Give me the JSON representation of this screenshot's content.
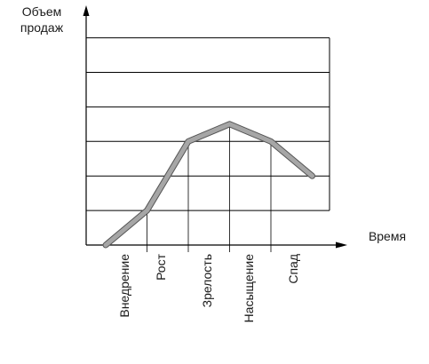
{
  "chart_data": {
    "type": "line",
    "title": "",
    "ylabel": "Объем продаж",
    "xlabel": "Время",
    "categories": [
      "Внедрение",
      "Рост",
      "Зрелость",
      "Насыщение",
      "Спад"
    ],
    "x": [
      0,
      1,
      2,
      3,
      4,
      5,
      6
    ],
    "y": [
      0,
      1,
      3,
      3.5,
      3,
      2,
      null
    ],
    "points": [
      {
        "x": 0,
        "y": 0
      },
      {
        "x": 1,
        "y": 1
      },
      {
        "x": 2,
        "y": 3
      },
      {
        "x": 3,
        "y": 3.5
      },
      {
        "x": 4,
        "y": 3
      },
      {
        "x": 5,
        "y": 2
      }
    ],
    "ylim": [
      0,
      6
    ],
    "grid": "horizontal",
    "line_color": "#a6a6a6",
    "grid_color": "#000000"
  }
}
